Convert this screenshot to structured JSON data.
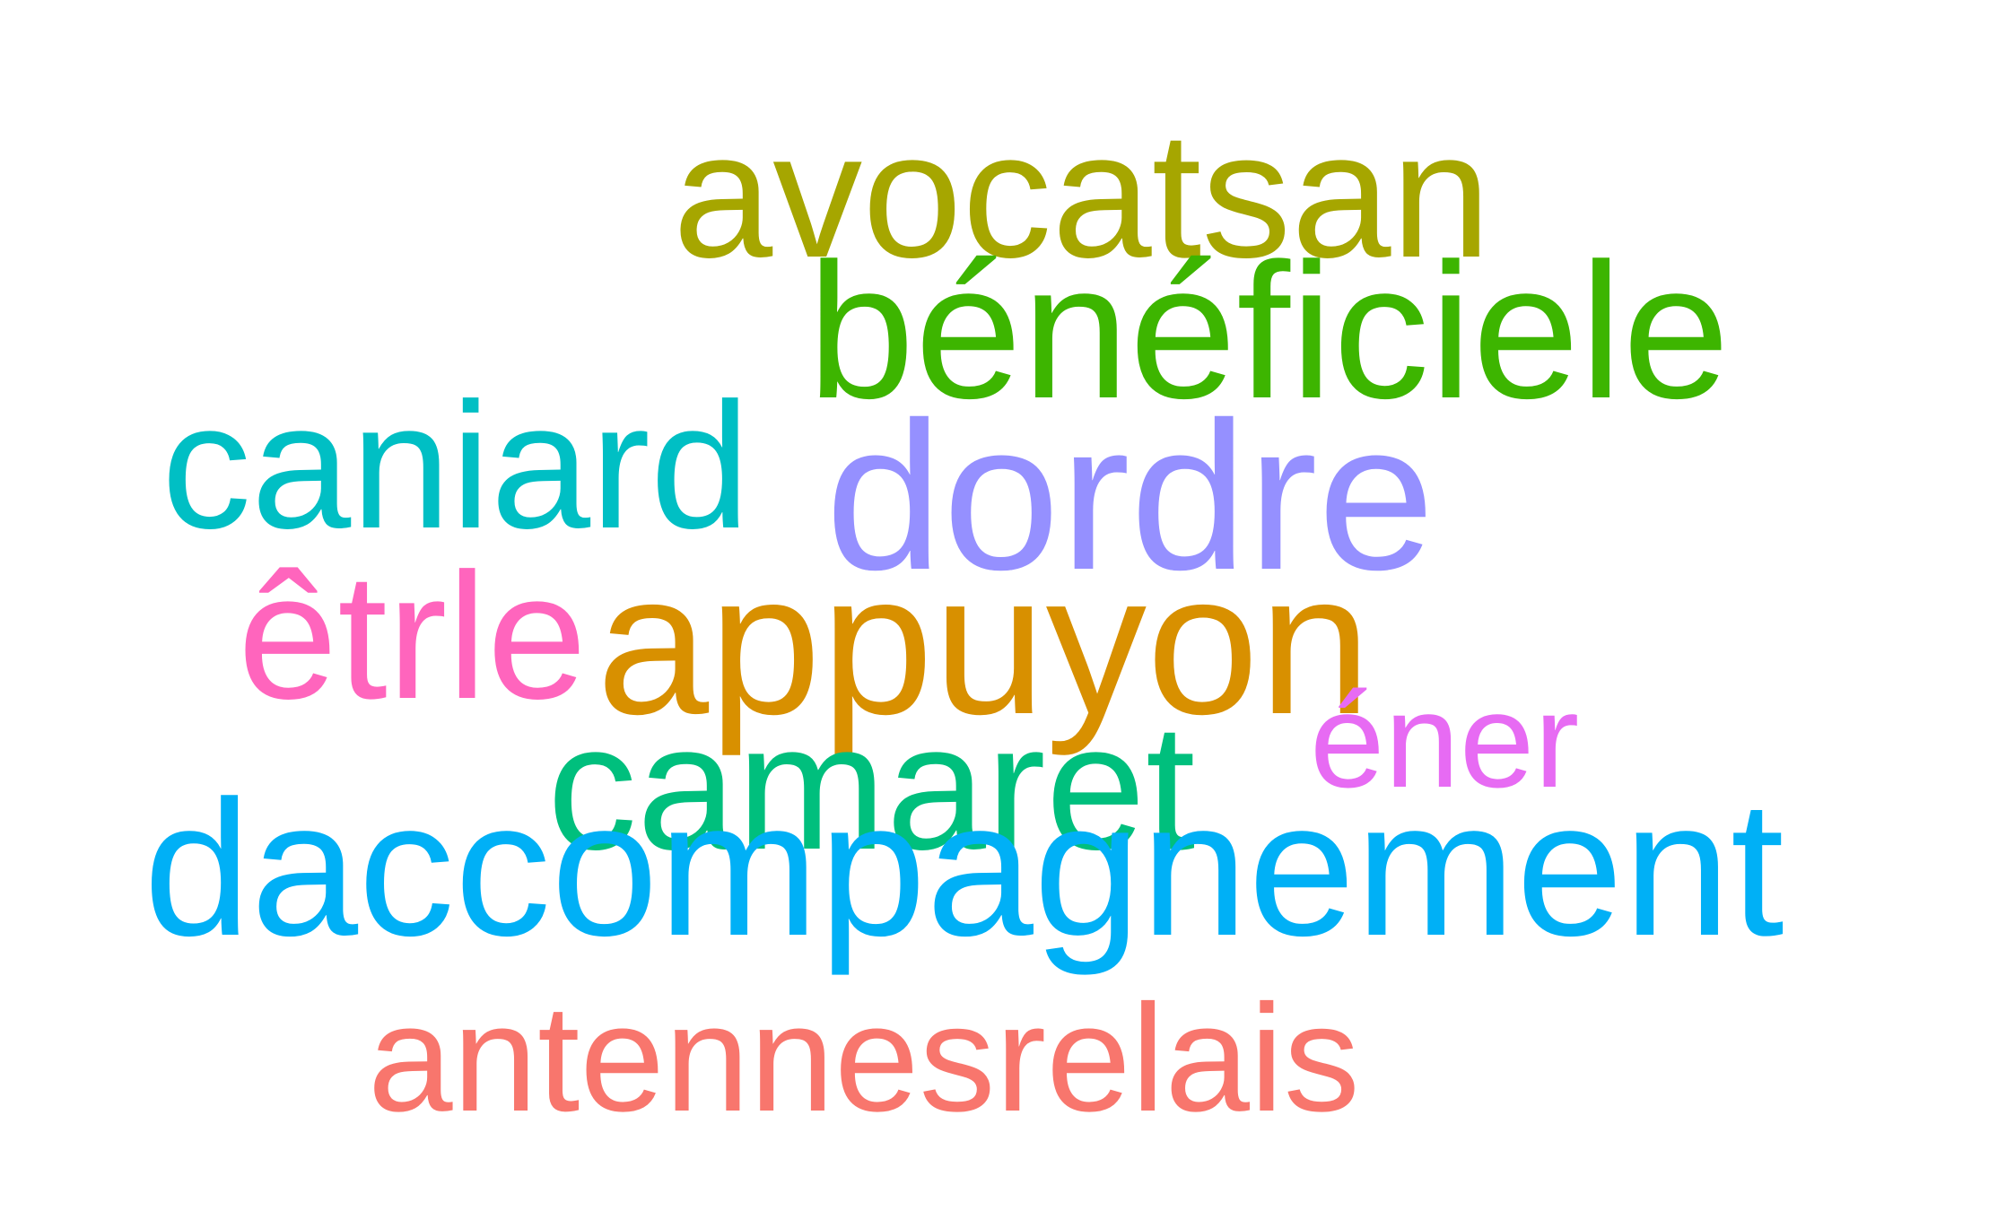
{
  "words": [
    {
      "text": "avocatsan",
      "color": "#a6a600"
    },
    {
      "text": "bénéficiele",
      "color": "#3db500"
    },
    {
      "text": "caniard",
      "color": "#00bfc4"
    },
    {
      "text": "dordre",
      "color": "#9590ff"
    },
    {
      "text": "êtrle",
      "color": "#ff65bd"
    },
    {
      "text": "appuyon",
      "color": "#d89000"
    },
    {
      "text": "éner",
      "color": "#e76bf3"
    },
    {
      "text": "camaret",
      "color": "#00bf7d"
    },
    {
      "text": "daccompagnement",
      "color": "#00b0f6"
    },
    {
      "text": "antennesrelais",
      "color": "#f8766d"
    }
  ]
}
